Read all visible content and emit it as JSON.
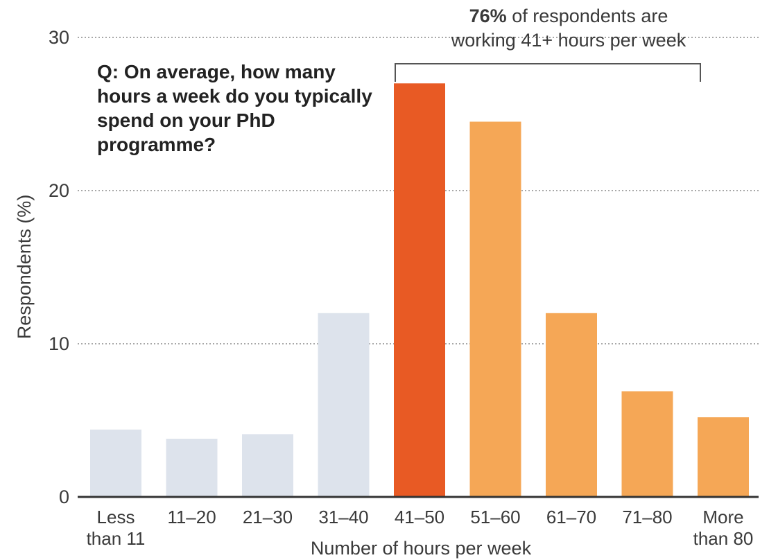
{
  "chart_data": {
    "type": "bar",
    "question": "Q: On average, how many hours a week do you typically spend on your PhD programme?",
    "categories": [
      [
        "Less",
        "than 11"
      ],
      [
        "11–20"
      ],
      [
        "21–30"
      ],
      [
        "31–40"
      ],
      [
        "41–50"
      ],
      [
        "51–60"
      ],
      [
        "61–70"
      ],
      [
        "71–80"
      ],
      [
        "More",
        "than 80"
      ]
    ],
    "values": [
      4.4,
      3.8,
      4.1,
      12.0,
      27.0,
      24.5,
      12.0,
      6.9,
      5.2
    ],
    "ylabel": "Respondents (%)",
    "xlabel": "Number of hours per week",
    "ylim": [
      0,
      30
    ],
    "yticks": [
      0,
      10,
      20,
      30
    ],
    "grid": "dotted horizontal",
    "colors": {
      "below_41": "#dde3ec",
      "peak": "#e85a24",
      "above_41": "#f5a756",
      "axis": "#333333",
      "grid": "#8a8a8a"
    },
    "callout": {
      "bold": "76%",
      "line1_rest": " of respondents are",
      "line2": "working 41+ hours per week"
    }
  }
}
